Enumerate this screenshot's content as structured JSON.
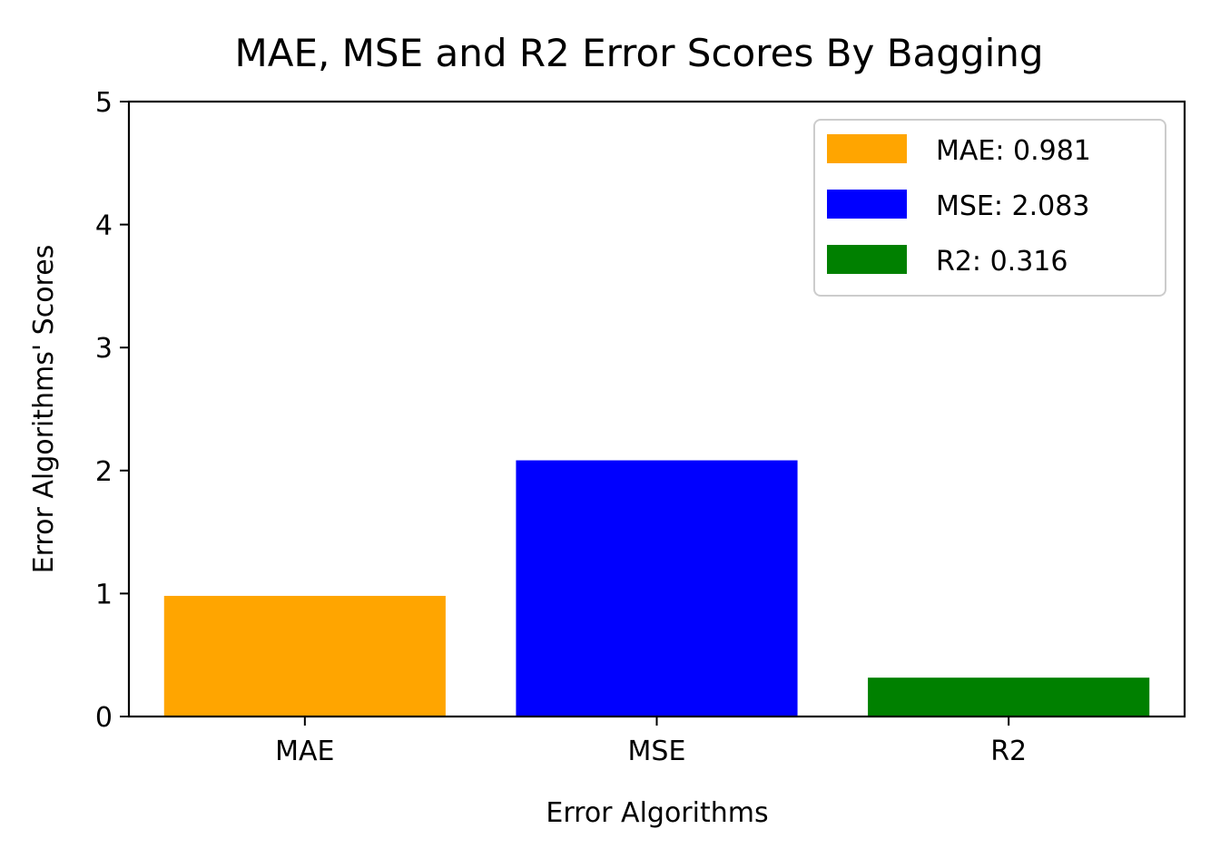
{
  "chart_data": {
    "type": "bar",
    "title": "MAE, MSE and R2 Error Scores By Bagging",
    "xlabel": "Error Algorithms",
    "ylabel": "Error Algorithms' Scores",
    "categories": [
      "MAE",
      "MSE",
      "R2"
    ],
    "values": [
      0.981,
      2.083,
      0.316
    ],
    "colors": [
      "#ffa500",
      "#0000ff",
      "#008000"
    ],
    "ylim": [
      0,
      5
    ],
    "yticks": [
      0,
      1,
      2,
      3,
      4,
      5
    ],
    "grid": false,
    "legend": {
      "placement": "top-right",
      "entries": [
        "MAE: 0.981",
        "MSE: 2.083",
        "R2: 0.316"
      ]
    }
  }
}
